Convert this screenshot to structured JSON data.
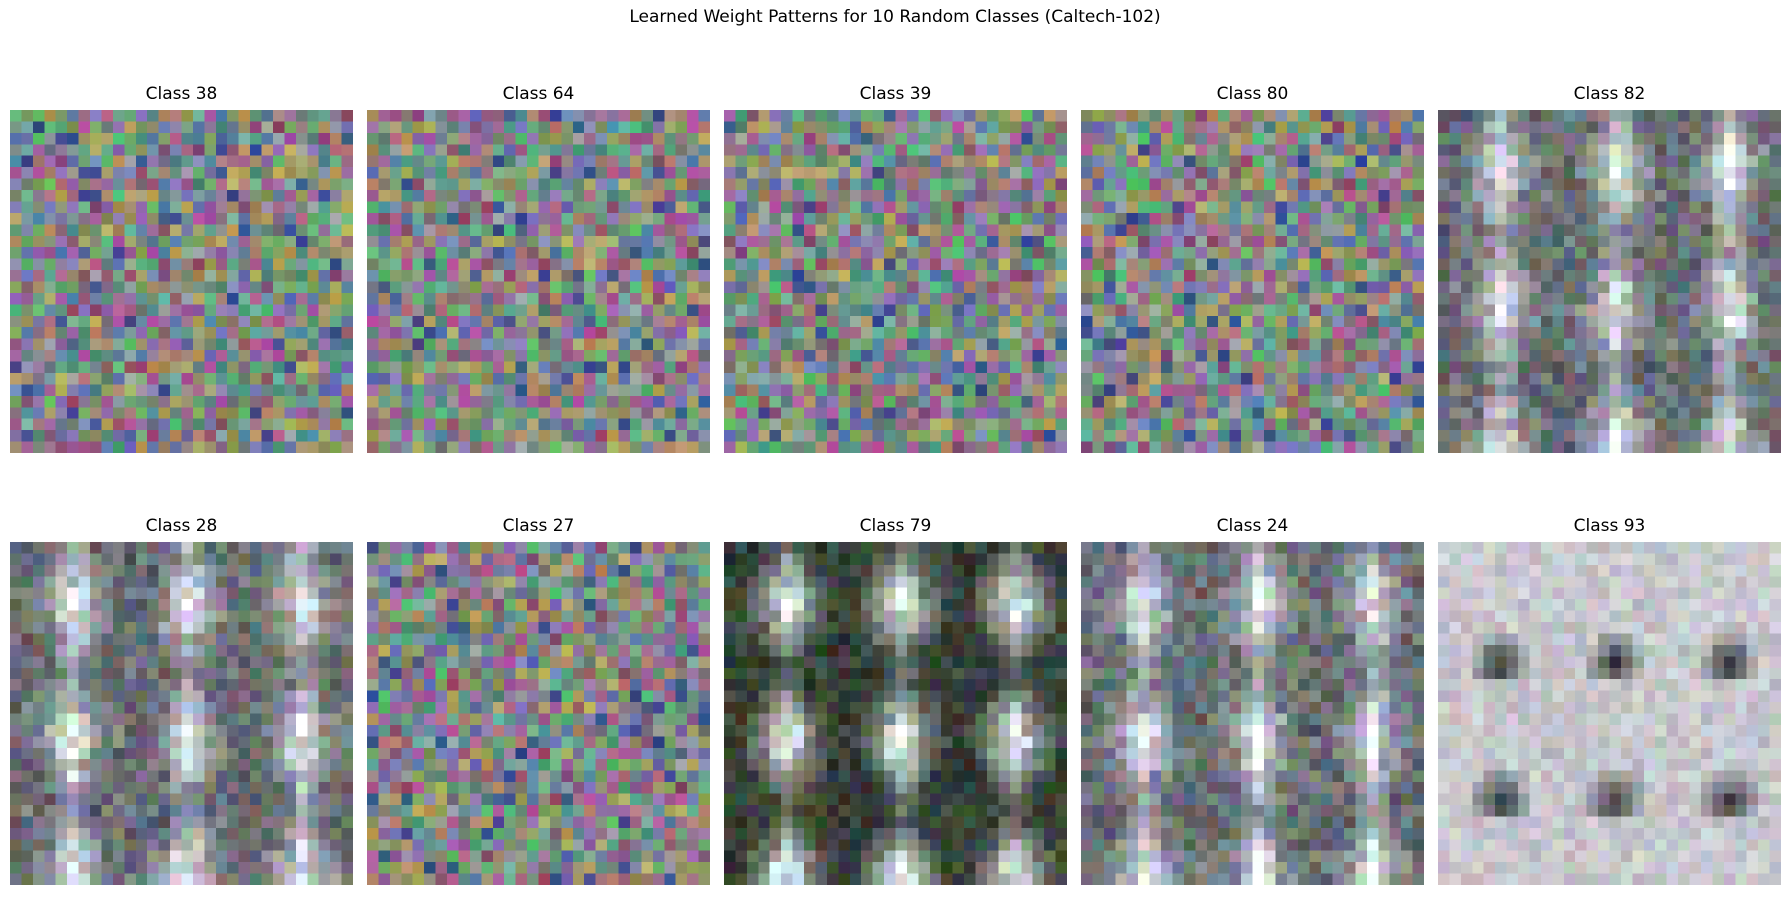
{
  "figure": {
    "title": "Learned Weight Patterns for 10 Random Classes (Caltech-102)"
  },
  "panels": [
    {
      "title": "Class 38",
      "pattern": "noise-color",
      "palette": "saturated-mixed"
    },
    {
      "title": "Class 64",
      "pattern": "noise-color",
      "palette": "saturated-mixed"
    },
    {
      "title": "Class 39",
      "pattern": "noise-color",
      "palette": "saturated-mixed"
    },
    {
      "title": "Class 80",
      "pattern": "noise-color",
      "palette": "saturated-mixed"
    },
    {
      "title": "Class 82",
      "pattern": "structured-gray",
      "palette": "gray-with-bright-cyan-white-blobs"
    },
    {
      "title": "Class 28",
      "pattern": "structured-gray",
      "palette": "gray-with-light-blobs"
    },
    {
      "title": "Class 27",
      "pattern": "noise-color",
      "palette": "saturated-mixed"
    },
    {
      "title": "Class 79",
      "pattern": "structured-dark",
      "palette": "dark-with-bright-blobs"
    },
    {
      "title": "Class 24",
      "pattern": "structured-gray",
      "palette": "dark-gray-with-light-stripes"
    },
    {
      "title": "Class 93",
      "pattern": "structured-light",
      "palette": "light-gray-with-dark-spots"
    }
  ]
}
